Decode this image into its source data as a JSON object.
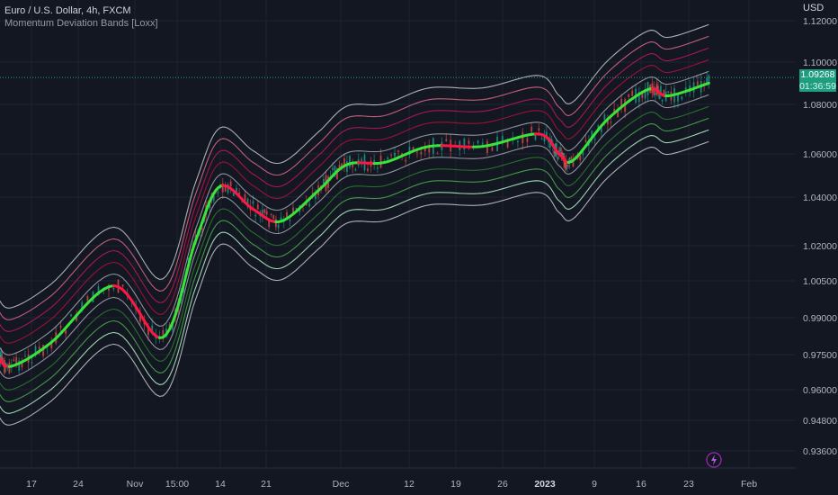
{
  "legend": {
    "symbol": "Euro / U.S. Dollar, 4h, FXCM",
    "indicator": "Momentum Deviation Bands [Loxx]"
  },
  "axis": {
    "unit": "USD"
  },
  "last_price": {
    "value": "1.09268",
    "countdown": "01:36:59",
    "color": "#1e9e7f"
  },
  "colors": {
    "background": "#131722",
    "grid": "#1f2330",
    "rising": "#39e33b",
    "falling": "#ff1744",
    "outer_band": "#c8cad0",
    "upper_bands": [
      "#a6a8b0",
      "#b0103c",
      "#c2185b",
      "#e06a8a"
    ],
    "lower_bands": [
      "#a6a8b0",
      "#2e7d32",
      "#4caf50",
      "#b9f6ca"
    ]
  },
  "chart_data": {
    "type": "line",
    "title": "Momentum Deviation Bands [Loxx]",
    "y_scale": "log",
    "y_ticks": [
      "1.12000",
      "1.10000",
      "1.08000",
      "1.06000",
      "1.04000",
      "1.02000",
      "1.00500",
      "0.99000",
      "0.97500",
      "0.96000",
      "0.94800",
      "0.93600"
    ],
    "x_ticks": [
      {
        "label": "17",
        "date": "2022-10-17"
      },
      {
        "label": "24",
        "date": "2022-10-24"
      },
      {
        "label": "Nov",
        "date": "2022-11-01"
      },
      {
        "label": "15:00",
        "date": "2022-11-07"
      },
      {
        "label": "14",
        "date": "2022-11-14"
      },
      {
        "label": "21",
        "date": "2022-11-21"
      },
      {
        "label": "Dec",
        "date": "2022-12-01"
      },
      {
        "label": "12",
        "date": "2022-12-12"
      },
      {
        "label": "19",
        "date": "2022-12-19"
      },
      {
        "label": "26",
        "date": "2022-12-26"
      },
      {
        "label": "2023",
        "date": "2023-01-02"
      },
      {
        "label": "9",
        "date": "2023-01-09"
      },
      {
        "label": "16",
        "date": "2023-01-16"
      },
      {
        "label": "23",
        "date": "2023-01-23"
      },
      {
        "label": "Feb",
        "date": "2023-02-01"
      }
    ],
    "band_levels": [
      1,
      2,
      3,
      4,
      5
    ],
    "midline": [
      [
        "2022-10-12",
        0.974
      ],
      [
        "2022-10-14",
        0.97
      ],
      [
        "2022-10-20",
        0.98
      ],
      [
        "2022-10-29",
        1.003
      ],
      [
        "2022-11-05",
        0.982
      ],
      [
        "2022-11-10",
        1.022
      ],
      [
        "2022-11-14",
        1.045
      ],
      [
        "2022-11-19",
        1.035
      ],
      [
        "2022-11-23",
        1.03
      ],
      [
        "2022-11-28",
        1.043
      ],
      [
        "2022-12-02",
        1.055
      ],
      [
        "2022-12-08",
        1.056
      ],
      [
        "2022-12-15",
        1.063
      ],
      [
        "2022-12-23",
        1.063
      ],
      [
        "2023-01-01",
        1.068
      ],
      [
        "2023-01-04",
        1.06
      ],
      [
        "2023-01-06",
        1.057
      ],
      [
        "2023-01-11",
        1.074
      ],
      [
        "2023-01-17",
        1.087
      ],
      [
        "2023-01-20",
        1.084
      ],
      [
        "2023-01-26",
        1.09
      ]
    ],
    "last_value": 1.09268
  }
}
